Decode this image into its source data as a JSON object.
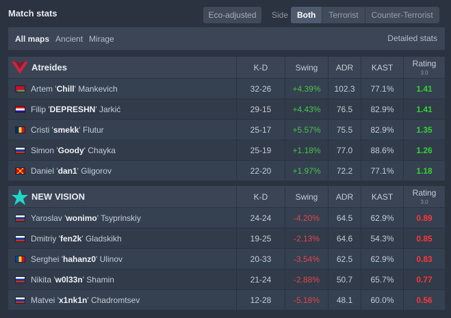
{
  "header": {
    "title": "Match stats",
    "eco_label": "Eco-adjusted",
    "side_label": "Side",
    "side_options": [
      "Both",
      "Terrorist",
      "Counter-Terrorist"
    ],
    "side_selected": "Both"
  },
  "maps": {
    "items": [
      "All maps",
      "Ancient",
      "Mirage"
    ],
    "selected": "All maps",
    "detailed_label": "Detailed stats"
  },
  "columns": {
    "kd": "K-D",
    "swing": "Swing",
    "adr": "ADR",
    "kast": "KAST",
    "rating": "Rating",
    "rating_version": "3.0"
  },
  "colors": {
    "positive": "#47c447",
    "negative": "#e04747",
    "team_a_logo": "#d0213a",
    "team_b_logo": "#1fd7c9"
  },
  "teams": [
    {
      "name": "Atreides",
      "logo_icon": "atreides-logo-icon",
      "players": [
        {
          "first": "Artem",
          "nick": "Chill",
          "last": "Mankevich",
          "flag": "by",
          "kd": "32-26",
          "swing": "+4.39%",
          "adr": "102.3",
          "kast": "77.1%",
          "rating": "1.41"
        },
        {
          "first": "Filip",
          "nick": "DEPRESHN",
          "last": "Jarkić",
          "flag": "hr",
          "kd": "29-15",
          "swing": "+4.43%",
          "adr": "76.5",
          "kast": "82.9%",
          "rating": "1.41"
        },
        {
          "first": "Cristi",
          "nick": "smekk",
          "last": "Flutur",
          "flag": "ro",
          "kd": "25-17",
          "swing": "+5.57%",
          "adr": "75.5",
          "kast": "82.9%",
          "rating": "1.35"
        },
        {
          "first": "Simon",
          "nick": "Goody",
          "last": "Chayka",
          "flag": "ru",
          "kd": "25-19",
          "swing": "+1.18%",
          "adr": "77.0",
          "kast": "88.6%",
          "rating": "1.26"
        },
        {
          "first": "Daniel",
          "nick": "dan1",
          "last": "Gligorov",
          "flag": "mk",
          "kd": "22-20",
          "swing": "+1.97%",
          "adr": "72.2",
          "kast": "77.1%",
          "rating": "1.18"
        }
      ]
    },
    {
      "name": "NEW VISION",
      "logo_icon": "new-vision-star-logo-icon",
      "players": [
        {
          "first": "Yaroslav",
          "nick": "wonimo",
          "last": "Tsyprinskiy",
          "flag": "ru",
          "kd": "24-24",
          "swing": "-4.20%",
          "adr": "64.5",
          "kast": "62.9%",
          "rating": "0.89"
        },
        {
          "first": "Dmitriy",
          "nick": "fen2k",
          "last": "Gladskikh",
          "flag": "ru",
          "kd": "19-25",
          "swing": "-2.13%",
          "adr": "64.6",
          "kast": "54.3%",
          "rating": "0.85"
        },
        {
          "first": "Serghei",
          "nick": "hahanz0",
          "last": "Ulinov",
          "flag": "md",
          "kd": "20-33",
          "swing": "-3.54%",
          "adr": "62.5",
          "kast": "62.9%",
          "rating": "0.83"
        },
        {
          "first": "Nikita",
          "nick": "w0l33n",
          "last": "Shamin",
          "flag": "ru",
          "kd": "21-24",
          "swing": "-2.88%",
          "adr": "50.7",
          "kast": "65.7%",
          "rating": "0.77"
        },
        {
          "first": "Matvei",
          "nick": "x1nk1n",
          "last": "Chadromtsev",
          "flag": "ru",
          "kd": "12-28",
          "swing": "-5.18%",
          "adr": "48.1",
          "kast": "60.0%",
          "rating": "0.56"
        }
      ]
    }
  ]
}
